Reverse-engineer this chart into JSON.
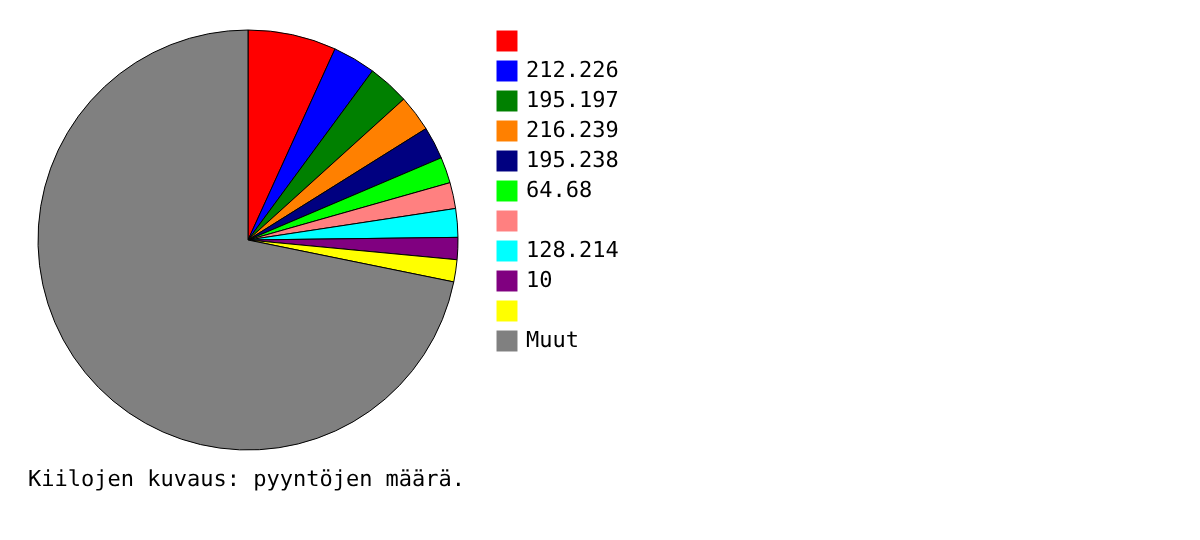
{
  "chart_data": {
    "type": "pie",
    "categories": [
      null,
      "212.226",
      "195.197",
      "216.239",
      "195.238",
      "64.68",
      null,
      "128.214",
      "10",
      null,
      "Muut"
    ],
    "values": [
      6.8,
      3.3,
      3.2,
      2.8,
      2.5,
      2.0,
      2.0,
      2.2,
      1.7,
      1.7,
      71.8
    ],
    "colors": [
      "#ff0000",
      "#0000ff",
      "#008000",
      "#ff8000",
      "#000080",
      "#00ff00",
      "#ff8080",
      "#00ffff",
      "#800080",
      "#ffff00",
      "#808080"
    ],
    "legend": "right",
    "annotations": [
      "Kiilojen kuvaus: pyyntöjen määrä."
    ]
  }
}
